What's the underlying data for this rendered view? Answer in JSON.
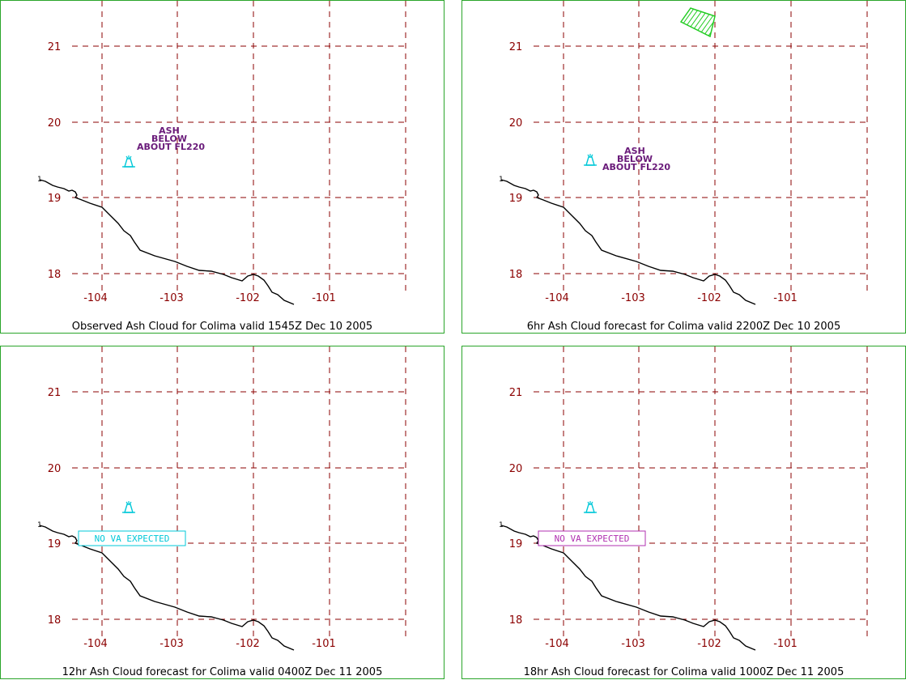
{
  "colors": {
    "grid": "#8b0000",
    "border": "#2aa52a",
    "coast": "#000000",
    "volcano": "#00c8d8",
    "ash_label": "#6a1b7a",
    "ash_cloud": "#22cc22",
    "no_va_cyan": "#00c8d8",
    "no_va_magenta": "#b030b0"
  },
  "map": {
    "lon_ticks": [
      "-104",
      "-103",
      "-102",
      "-101"
    ],
    "lat_ticks": [
      "21",
      "20",
      "19",
      "18"
    ],
    "volcano_icon": "volcano-icon",
    "coast_marker": "1"
  },
  "panels": [
    {
      "caption": "Observed Ash Cloud for Colima valid 1545Z Dec 10 2005",
      "ash_label": [
        "ASH",
        "BELOW",
        "ABOUT FL220"
      ],
      "no_va": "",
      "cloud": false
    },
    {
      "caption": "6hr Ash Cloud forecast for Colima valid 2200Z Dec 10 2005",
      "ash_label": [
        "ASH",
        "BELOW",
        "ABOUT FL220"
      ],
      "no_va": "",
      "cloud": true
    },
    {
      "caption": "12hr Ash Cloud forecast for Colima valid 0400Z Dec 11 2005",
      "ash_label": [],
      "no_va": "NO VA EXPECTED",
      "no_va_style": "cyan",
      "cloud": false
    },
    {
      "caption": "18hr Ash Cloud forecast for Colima valid 1000Z Dec 11 2005",
      "ash_label": [],
      "no_va": "NO VA EXPECTED",
      "no_va_style": "magenta",
      "cloud": false
    }
  ]
}
